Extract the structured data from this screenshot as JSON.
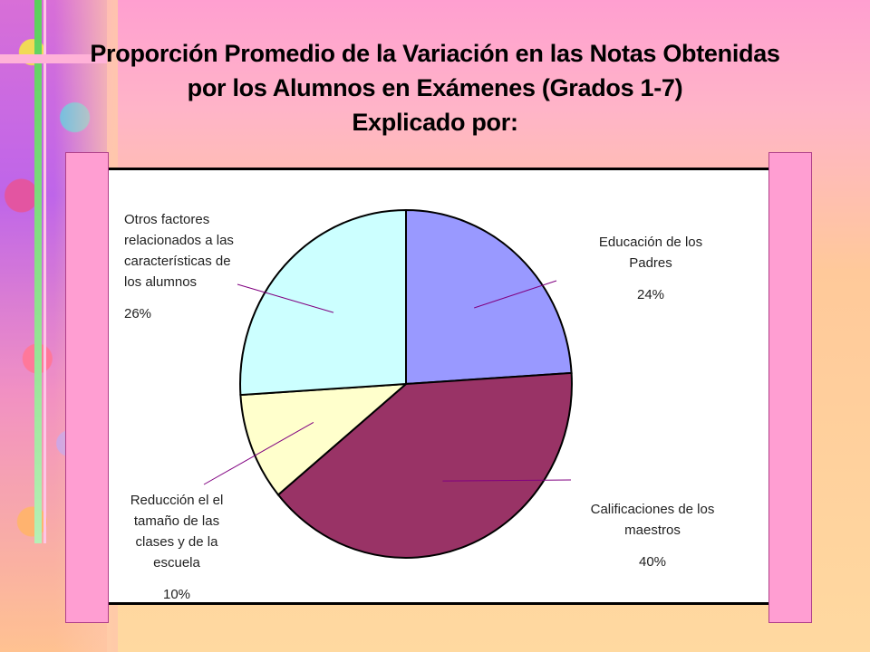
{
  "title_lines": [
    "Proporción Promedio de la Variación  en las Notas Obtenidas",
    "por los Alumnos en Exámenes (Grados 1-7)",
    "Explicado por:"
  ],
  "chart_data": {
    "type": "pie",
    "title": "Proporción Promedio de la Variación  en las Notas Obtenidas por los Alumnos en Exámenes (Grados 1-7) Explicado por:",
    "slices": [
      {
        "name": "Educación de los Padres",
        "value": 24,
        "label": "24%",
        "color": "#9999ff"
      },
      {
        "name": "Calificaciones de los maestros",
        "value": 40,
        "label": "40%",
        "color": "#993366"
      },
      {
        "name": "Reducción el el tamaño de las clases y de la escuela",
        "value": 10,
        "label": "10%",
        "color": "#ffffcc"
      },
      {
        "name": "Otros factores relacionados a las características de los alumnos",
        "value": 26,
        "label": "26%",
        "color": "#ccffff"
      }
    ],
    "label_lines": [
      [
        "Educación de los",
        "Padres"
      ],
      [
        "Calificaciones de los",
        "maestros"
      ],
      [
        "Reducción el el",
        "tamaño de las",
        "clases y de la",
        "escuela"
      ],
      [
        "Otros factores",
        "relacionados a las",
        "características de",
        "los alumnos"
      ]
    ],
    "leader_color": "#800080"
  },
  "colors": {
    "tab_pink": "#ff9ed2",
    "frame_bg": "#ffffff"
  }
}
